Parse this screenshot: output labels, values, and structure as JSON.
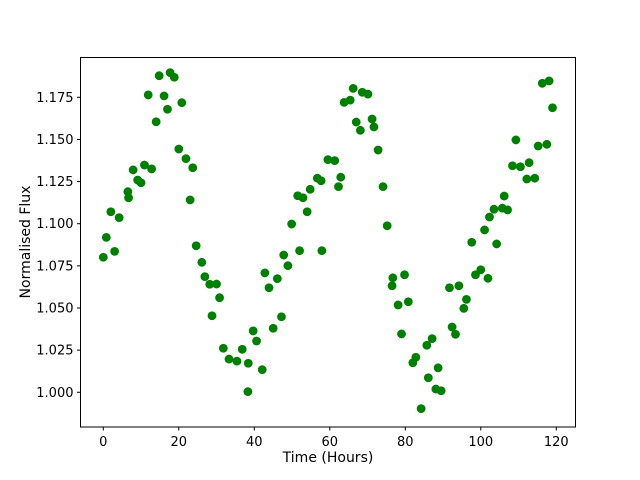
{
  "figure": {
    "background": "#ffffff"
  },
  "chart_data": {
    "type": "scatter",
    "title": "",
    "xlabel": "Time (Hours)",
    "ylabel": "Normalised Flux",
    "xlim": [
      -6.04,
      125.09
    ],
    "ylim": [
      0.9794,
      1.1986
    ],
    "xticks": [
      0,
      20,
      40,
      60,
      80,
      100,
      120
    ],
    "yticks": [
      1.0,
      1.025,
      1.05,
      1.075,
      1.1,
      1.125,
      1.15,
      1.175
    ],
    "ytick_decimals": 3,
    "grid": false,
    "legend_position": "none",
    "marker": {
      "shape": "circle",
      "color": "#008000",
      "radius_px": 4.4
    },
    "axis_color": "#000000",
    "points": [
      [
        0.0,
        1.0801
      ],
      [
        0.8,
        1.0919
      ],
      [
        2.0,
        1.1071
      ],
      [
        3.0,
        1.0836
      ],
      [
        4.2,
        1.1036
      ],
      [
        6.5,
        1.119
      ],
      [
        6.7,
        1.1154
      ],
      [
        7.9,
        1.1319
      ],
      [
        9.1,
        1.1259
      ],
      [
        10.0,
        1.1243
      ],
      [
        10.9,
        1.1348
      ],
      [
        11.9,
        1.1764
      ],
      [
        12.8,
        1.1325
      ],
      [
        14.0,
        1.1605
      ],
      [
        14.8,
        1.1878
      ],
      [
        16.1,
        1.1758
      ],
      [
        17.0,
        1.1679
      ],
      [
        17.7,
        1.1896
      ],
      [
        18.8,
        1.1869
      ],
      [
        20.0,
        1.1443
      ],
      [
        20.8,
        1.1718
      ],
      [
        21.9,
        1.1386
      ],
      [
        23.0,
        1.1141
      ],
      [
        23.7,
        1.1332
      ],
      [
        24.6,
        1.0869
      ],
      [
        26.1,
        1.0771
      ],
      [
        26.9,
        1.0686
      ],
      [
        28.2,
        1.0641
      ],
      [
        28.8,
        1.0454
      ],
      [
        30.0,
        1.0642
      ],
      [
        30.8,
        1.0561
      ],
      [
        31.8,
        1.0261
      ],
      [
        33.3,
        1.0197
      ],
      [
        35.4,
        1.0185
      ],
      [
        36.8,
        1.0255
      ],
      [
        38.3,
        1.0004
      ],
      [
        38.4,
        1.0172
      ],
      [
        39.7,
        1.0364
      ],
      [
        40.6,
        1.0304
      ],
      [
        42.1,
        1.0134
      ],
      [
        42.8,
        1.0708
      ],
      [
        43.9,
        1.062
      ],
      [
        45.0,
        1.038
      ],
      [
        46.1,
        1.0674
      ],
      [
        47.2,
        1.0448
      ],
      [
        47.8,
        1.0814
      ],
      [
        48.9,
        1.0751
      ],
      [
        49.9,
        1.0998
      ],
      [
        51.5,
        1.1166
      ],
      [
        52.0,
        1.084
      ],
      [
        52.9,
        1.1154
      ],
      [
        54.0,
        1.1071
      ],
      [
        54.8,
        1.1204
      ],
      [
        56.7,
        1.127
      ],
      [
        57.7,
        1.1255
      ],
      [
        57.9,
        1.084
      ],
      [
        59.5,
        1.138
      ],
      [
        61.3,
        1.1374
      ],
      [
        62.3,
        1.122
      ],
      [
        62.9,
        1.1276
      ],
      [
        63.8,
        1.172
      ],
      [
        65.4,
        1.1733
      ],
      [
        66.2,
        1.1803
      ],
      [
        67.0,
        1.1603
      ],
      [
        68.1,
        1.1554
      ],
      [
        68.6,
        1.178
      ],
      [
        70.1,
        1.1769
      ],
      [
        71.2,
        1.1621
      ],
      [
        71.7,
        1.1574
      ],
      [
        72.8,
        1.1437
      ],
      [
        74.1,
        1.122
      ],
      [
        75.2,
        1.0988
      ],
      [
        76.5,
        1.0632
      ],
      [
        76.7,
        1.0679
      ],
      [
        78.1,
        1.0518
      ],
      [
        79.0,
        1.0346
      ],
      [
        79.8,
        1.0697
      ],
      [
        80.8,
        1.0537
      ],
      [
        82.0,
        1.0175
      ],
      [
        82.8,
        1.0208
      ],
      [
        84.2,
        0.9903
      ],
      [
        85.7,
        1.0279
      ],
      [
        86.1,
        1.0086
      ],
      [
        87.1,
        1.0318
      ],
      [
        88.1,
        1.0019
      ],
      [
        88.7,
        1.0145
      ],
      [
        89.5,
        1.0009
      ],
      [
        91.7,
        1.062
      ],
      [
        92.4,
        1.0387
      ],
      [
        93.3,
        1.0344
      ],
      [
        94.2,
        1.0632
      ],
      [
        95.5,
        1.0498
      ],
      [
        96.2,
        1.0551
      ],
      [
        97.6,
        1.089
      ],
      [
        98.6,
        1.0697
      ],
      [
        100.0,
        1.0727
      ],
      [
        101.0,
        1.0963
      ],
      [
        101.9,
        1.0676
      ],
      [
        102.3,
        1.104
      ],
      [
        103.5,
        1.1086
      ],
      [
        104.2,
        1.088
      ],
      [
        105.7,
        1.1092
      ],
      [
        106.2,
        1.1164
      ],
      [
        107.1,
        1.1082
      ],
      [
        108.4,
        1.1344
      ],
      [
        109.3,
        1.1497
      ],
      [
        110.5,
        1.1338
      ],
      [
        112.2,
        1.1265
      ],
      [
        112.8,
        1.1362
      ],
      [
        114.3,
        1.127
      ],
      [
        115.2,
        1.1461
      ],
      [
        116.3,
        1.1833
      ],
      [
        117.5,
        1.1471
      ],
      [
        118.1,
        1.1847
      ],
      [
        119.0,
        1.1688
      ]
    ]
  }
}
